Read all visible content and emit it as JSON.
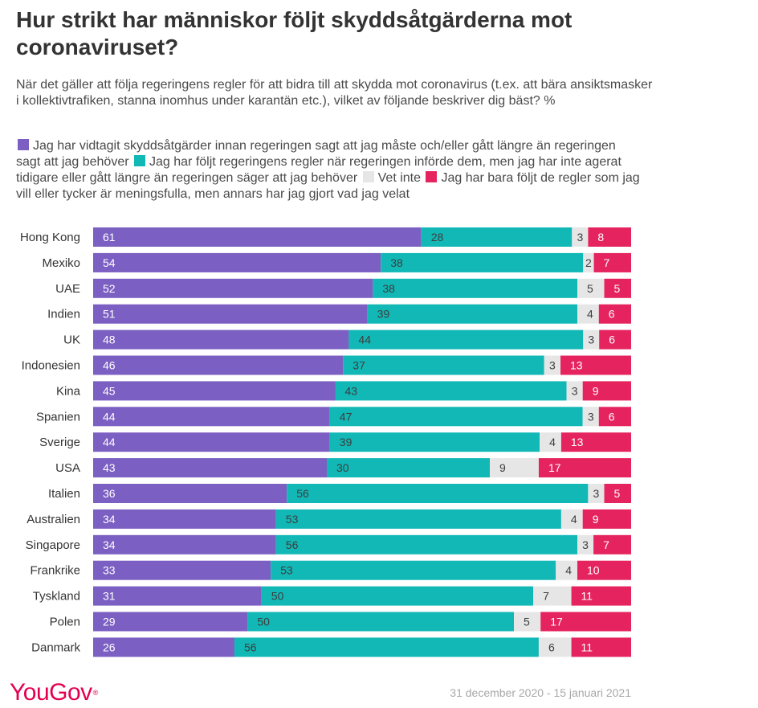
{
  "chart_data": {
    "type": "bar",
    "orientation": "horizontal",
    "stacked": true,
    "title": "Hur strikt har människor följt skyddsåtgärderna mot coronaviruset?",
    "subtitle": "När det gäller att följa regeringens regler för att bidra till att skydda mot coronavirus (t.ex. att bära ansiktsmasker i kollektivtrafiken, stanna inomhus under karantän etc.), vilket av följande beskriver dig bäst? %",
    "categories": [
      "Hong Kong",
      "Mexiko",
      "UAE",
      "Indien",
      "UK",
      "Indonesien",
      "Kina",
      "Spanien",
      "Sverige",
      "USA",
      "Italien",
      "Australien",
      "Singapore",
      "Frankrike",
      "Tyskland",
      "Polen",
      "Danmark"
    ],
    "series": [
      {
        "name": "Jag har vidtagit skyddsåtgärder innan regeringen sagt att jag måste och/eller gått längre än regeringen sagt att jag behöver",
        "color": "#7b5fc2",
        "values": [
          61,
          54,
          52,
          51,
          48,
          46,
          45,
          44,
          44,
          43,
          36,
          34,
          34,
          33,
          31,
          29,
          26
        ]
      },
      {
        "name": "Jag har följt regeringens regler när regeringen införde dem, men jag har inte agerat tidigare eller gått längre än regeringen säger att jag behöver",
        "color": "#12b8b6",
        "values": [
          28,
          38,
          38,
          39,
          44,
          37,
          43,
          47,
          39,
          30,
          56,
          53,
          56,
          53,
          50,
          50,
          56
        ]
      },
      {
        "name": "Vet inte",
        "color": "#e6e6e6",
        "values": [
          3,
          2,
          5,
          4,
          3,
          3,
          3,
          3,
          4,
          9,
          3,
          4,
          3,
          4,
          7,
          5,
          6
        ]
      },
      {
        "name": "Jag har bara följt de regler som jag vill eller tycker är meningsfulla, men annars har jag gjort vad jag velat",
        "color": "#e5245f",
        "values": [
          8,
          7,
          5,
          6,
          6,
          13,
          9,
          6,
          13,
          17,
          5,
          9,
          7,
          10,
          11,
          17,
          11
        ]
      }
    ],
    "xlim": [
      0,
      100
    ],
    "grid": false,
    "legend_position": "top"
  },
  "footer": {
    "logo": "YouGov",
    "date_range": "31 december 2020 - 15 januari 2021"
  }
}
